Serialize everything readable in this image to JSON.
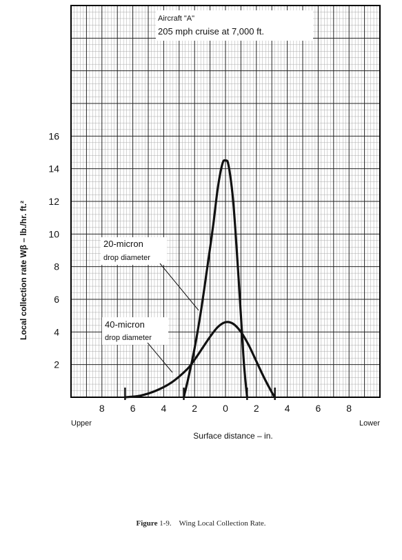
{
  "chart_data": {
    "type": "line",
    "annotation_title": "Aircraft \"A\"",
    "annotation_subtitle": "205 mph cruise at 7,000 ft.",
    "ylabel": "Local collection rate Wβ – lb./hr. ft.²",
    "xlabel": "Surface distance – in.",
    "x_side_left": "Upper",
    "x_side_right": "Lower",
    "x_ticks": [
      {
        "value": -8,
        "label": "8"
      },
      {
        "value": -6,
        "label": "6"
      },
      {
        "value": -4,
        "label": "4"
      },
      {
        "value": -2,
        "label": "2"
      },
      {
        "value": 0,
        "label": "0"
      },
      {
        "value": 2,
        "label": "2"
      },
      {
        "value": 4,
        "label": "4"
      },
      {
        "value": 6,
        "label": "6"
      },
      {
        "value": 8,
        "label": "8"
      }
    ],
    "y_ticks": [
      2,
      4,
      6,
      8,
      10,
      12,
      14,
      16
    ],
    "xlim": [
      -10,
      10
    ],
    "ylim": [
      0,
      24
    ],
    "grid": true,
    "series": [
      {
        "name": "20-micron drop diameter",
        "label_line1": "20-micron",
        "label_line2": "drop diameter",
        "x": [
          -2.7,
          -2.4,
          -2.0,
          -1.6,
          -1.2,
          -0.8,
          -0.5,
          -0.2,
          0.0,
          0.2,
          0.5,
          0.8,
          1.0,
          1.2,
          1.4
        ],
        "y": [
          0.0,
          1.2,
          3.0,
          5.2,
          7.8,
          10.5,
          12.8,
          14.3,
          14.5,
          14.2,
          12.0,
          8.0,
          5.0,
          2.0,
          0.0
        ]
      },
      {
        "name": "40-micron drop diameter",
        "label_line1": "40-micron",
        "label_line2": "drop diameter",
        "x": [
          -6.5,
          -5.5,
          -4.5,
          -3.5,
          -2.5,
          -2.0,
          -1.5,
          -1.0,
          -0.5,
          0.0,
          0.5,
          1.0,
          1.5,
          2.0,
          2.5,
          3.0,
          3.2
        ],
        "y": [
          0.0,
          0.1,
          0.4,
          0.9,
          1.7,
          2.3,
          3.0,
          3.7,
          4.3,
          4.6,
          4.5,
          4.0,
          3.2,
          2.2,
          1.2,
          0.3,
          0.0
        ]
      }
    ]
  },
  "caption": {
    "prefix": "Figure",
    "number": "1-9.",
    "text": "Wing Local Collection Rate."
  }
}
